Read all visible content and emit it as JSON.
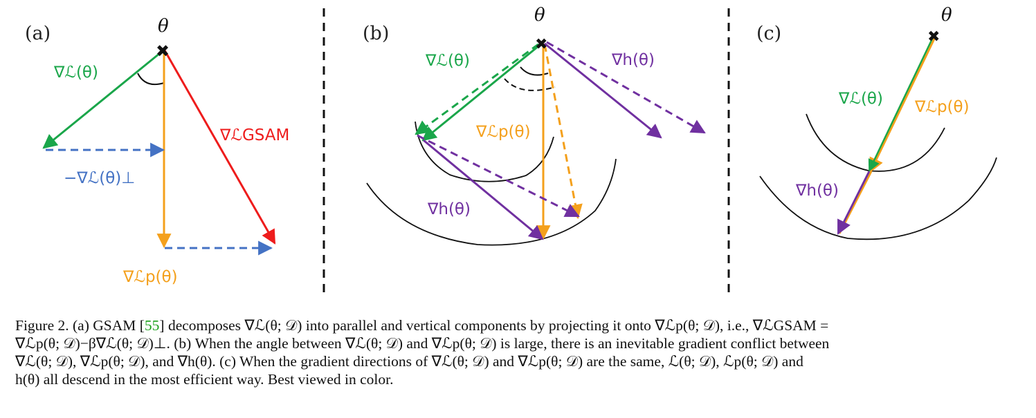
{
  "panels": {
    "a": {
      "label": "(a)",
      "theta": "θ",
      "vectors": [
        {
          "id": "grad-L",
          "label": "∇ℒ(θ)",
          "color": "#1aa64a"
        },
        {
          "id": "neg-grad-L-perp",
          "label": "−∇ℒ(θ)⊥",
          "color": "#4472c4"
        },
        {
          "id": "grad-Lp",
          "label": "∇ℒp(θ)",
          "color": "#f4a01c"
        },
        {
          "id": "grad-L-gsam",
          "label": "∇ℒGSAM",
          "color": "#ee1c1c"
        }
      ]
    },
    "b": {
      "label": "(b)",
      "theta": "θ",
      "vectors": [
        {
          "id": "grad-L",
          "label": "∇ℒ(θ)",
          "color": "#1aa64a"
        },
        {
          "id": "grad-h-top",
          "label": "∇h(θ)",
          "color": "#7030a0"
        },
        {
          "id": "grad-Lp",
          "label": "∇ℒp(θ)",
          "color": "#f4a01c"
        },
        {
          "id": "grad-h-bottom",
          "label": "∇h(θ)",
          "color": "#7030a0"
        }
      ]
    },
    "c": {
      "label": "(c)",
      "theta": "θ",
      "vectors": [
        {
          "id": "grad-L",
          "label": "∇ℒ(θ)",
          "color": "#1aa64a"
        },
        {
          "id": "grad-Lp",
          "label": "∇ℒp(θ)",
          "color": "#f4a01c"
        },
        {
          "id": "grad-h",
          "label": "∇h(θ)",
          "color": "#7030a0"
        }
      ]
    }
  },
  "caption": {
    "line1_a": "Figure 2.  (a) GSAM [",
    "ref": "55",
    "line1_b": "] decomposes ∇ℒ(θ; 𝒟) into parallel and vertical components by projecting it onto ∇ℒp(θ; 𝒟), i.e., ∇ℒGSAM =",
    "line2": "∇ℒp(θ; 𝒟)−β∇ℒ(θ; 𝒟)⊥. (b) When the angle between ∇ℒ(θ; 𝒟) and ∇ℒp(θ; 𝒟) is large, there is an inevitable gradient conflict between",
    "line3": "∇ℒ(θ; 𝒟), ∇ℒp(θ; 𝒟), and ∇h(θ). (c) When the gradient directions of ∇ℒ(θ; 𝒟) and ∇ℒp(θ; 𝒟) are the same, ℒ(θ; 𝒟), ℒp(θ; 𝒟) and",
    "line4": "h(θ) all descend in the most efficient way. Best viewed in color."
  }
}
